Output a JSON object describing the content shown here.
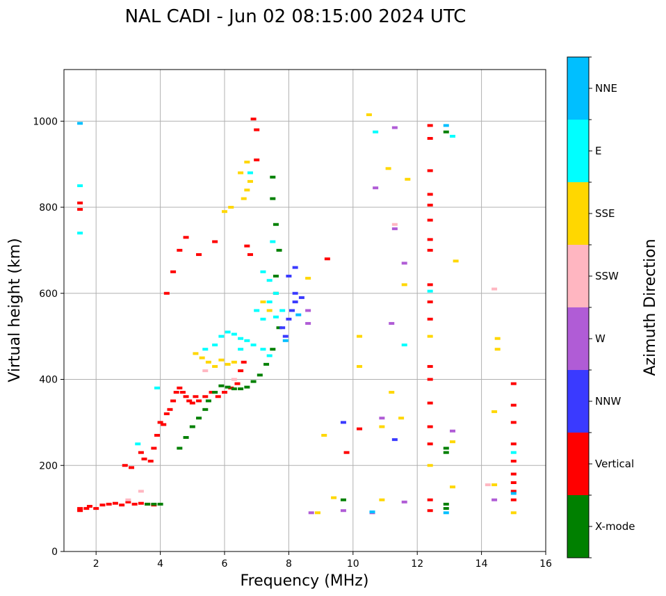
{
  "chart_data": {
    "type": "scatter",
    "title": "NAL CADI - Jun 02 08:15:00 2024 UTC",
    "xlabel": "Frequency (MHz)",
    "ylabel": "Virtual height (km)",
    "xlim": [
      1,
      16
    ],
    "ylim": [
      0,
      1120
    ],
    "xticks": [
      2,
      4,
      6,
      8,
      10,
      12,
      14,
      16
    ],
    "yticks": [
      0,
      200,
      400,
      600,
      800,
      1000
    ],
    "grid": true,
    "colorbar": {
      "label": "Azimuth Direction",
      "categories": [
        {
          "name": "X-mode",
          "color": "#008000"
        },
        {
          "name": "Vertical",
          "color": "#ff0000"
        },
        {
          "name": "NNW",
          "color": "#3a3aff"
        },
        {
          "name": "W",
          "color": "#b05cd6"
        },
        {
          "name": "SSW",
          "color": "#ffb6c1"
        },
        {
          "name": "SSE",
          "color": "#ffd700"
        },
        {
          "name": "E",
          "color": "#00ffff"
        },
        {
          "name": "NNE",
          "color": "#00bfff"
        }
      ]
    },
    "series": [
      {
        "name": "Vertical",
        "points": [
          [
            1.5,
            95
          ],
          [
            1.5,
            100
          ],
          [
            1.5,
            810
          ],
          [
            1.5,
            795
          ],
          [
            1.7,
            100
          ],
          [
            1.8,
            105
          ],
          [
            2.0,
            100
          ],
          [
            2.2,
            108
          ],
          [
            2.4,
            110
          ],
          [
            2.6,
            112
          ],
          [
            2.8,
            108
          ],
          [
            3.0,
            115
          ],
          [
            3.2,
            110
          ],
          [
            3.4,
            112
          ],
          [
            3.6,
            110
          ],
          [
            3.8,
            108
          ],
          [
            2.9,
            200
          ],
          [
            3.1,
            195
          ],
          [
            3.4,
            230
          ],
          [
            3.5,
            215
          ],
          [
            3.7,
            210
          ],
          [
            3.8,
            240
          ],
          [
            3.9,
            270
          ],
          [
            4.0,
            300
          ],
          [
            4.1,
            295
          ],
          [
            4.2,
            320
          ],
          [
            4.3,
            330
          ],
          [
            4.4,
            350
          ],
          [
            4.5,
            370
          ],
          [
            4.6,
            380
          ],
          [
            4.7,
            370
          ],
          [
            4.8,
            360
          ],
          [
            4.9,
            350
          ],
          [
            5.0,
            345
          ],
          [
            5.1,
            360
          ],
          [
            5.2,
            350
          ],
          [
            5.4,
            360
          ],
          [
            5.6,
            370
          ],
          [
            5.8,
            360
          ],
          [
            6.0,
            370
          ],
          [
            6.2,
            380
          ],
          [
            6.4,
            390
          ],
          [
            6.5,
            420
          ],
          [
            6.6,
            440
          ],
          [
            4.2,
            600
          ],
          [
            4.4,
            650
          ],
          [
            4.6,
            700
          ],
          [
            4.8,
            730
          ],
          [
            5.2,
            690
          ],
          [
            5.7,
            720
          ],
          [
            6.7,
            710
          ],
          [
            6.8,
            690
          ],
          [
            6.9,
            1005
          ],
          [
            7.0,
            980
          ],
          [
            7.0,
            910
          ],
          [
            12.4,
            990
          ],
          [
            12.4,
            960
          ],
          [
            12.4,
            885
          ],
          [
            12.4,
            830
          ],
          [
            12.4,
            805
          ],
          [
            12.4,
            770
          ],
          [
            12.4,
            725
          ],
          [
            12.4,
            700
          ],
          [
            12.4,
            620
          ],
          [
            12.4,
            580
          ],
          [
            12.4,
            540
          ],
          [
            12.4,
            430
          ],
          [
            12.4,
            400
          ],
          [
            12.4,
            345
          ],
          [
            12.4,
            290
          ],
          [
            12.4,
            250
          ],
          [
            12.4,
            120
          ],
          [
            12.4,
            95
          ],
          [
            15.0,
            390
          ],
          [
            15.0,
            340
          ],
          [
            15.0,
            300
          ],
          [
            15.0,
            250
          ],
          [
            15.0,
            210
          ],
          [
            15.0,
            180
          ],
          [
            15.0,
            160
          ],
          [
            15.0,
            140
          ],
          [
            15.0,
            120
          ],
          [
            10.2,
            285
          ],
          [
            9.8,
            230
          ],
          [
            9.2,
            680
          ]
        ]
      },
      {
        "name": "X-mode",
        "points": [
          [
            4.6,
            240
          ],
          [
            4.8,
            265
          ],
          [
            5.0,
            290
          ],
          [
            5.2,
            310
          ],
          [
            5.4,
            330
          ],
          [
            5.5,
            350
          ],
          [
            5.7,
            370
          ],
          [
            5.9,
            385
          ],
          [
            6.1,
            382
          ],
          [
            6.3,
            378
          ],
          [
            6.5,
            378
          ],
          [
            6.7,
            382
          ],
          [
            6.9,
            395
          ],
          [
            7.1,
            410
          ],
          [
            7.3,
            435
          ],
          [
            7.5,
            470
          ],
          [
            7.7,
            520
          ],
          [
            7.6,
            600
          ],
          [
            7.6,
            640
          ],
          [
            7.7,
            700
          ],
          [
            7.6,
            760
          ],
          [
            7.5,
            820
          ],
          [
            3.6,
            110
          ],
          [
            3.8,
            110
          ],
          [
            4.0,
            110
          ],
          [
            12.9,
            100
          ],
          [
            12.9,
            110
          ],
          [
            12.9,
            240
          ],
          [
            12.9,
            230
          ],
          [
            12.9,
            975
          ],
          [
            9.7,
            120
          ],
          [
            7.5,
            870
          ]
        ]
      },
      {
        "name": "NNW",
        "points": [
          [
            7.8,
            520
          ],
          [
            8.0,
            540
          ],
          [
            8.1,
            560
          ],
          [
            8.2,
            580
          ],
          [
            8.2,
            600
          ],
          [
            8.4,
            590
          ],
          [
            8.0,
            640
          ],
          [
            8.2,
            660
          ],
          [
            7.9,
            500
          ],
          [
            11.3,
            260
          ],
          [
            9.7,
            300
          ]
        ]
      },
      {
        "name": "W",
        "points": [
          [
            8.6,
            530
          ],
          [
            8.6,
            560
          ],
          [
            11.2,
            530
          ],
          [
            11.3,
            750
          ],
          [
            10.7,
            845
          ],
          [
            11.6,
            670
          ],
          [
            11.3,
            985
          ],
          [
            13.1,
            280
          ],
          [
            8.7,
            90
          ],
          [
            10.6,
            90
          ],
          [
            11.6,
            115
          ],
          [
            14.4,
            120
          ],
          [
            10.9,
            310
          ],
          [
            9.7,
            95
          ]
        ]
      },
      {
        "name": "SSW",
        "points": [
          [
            3.4,
            140
          ],
          [
            3.0,
            120
          ],
          [
            11.3,
            760
          ],
          [
            14.4,
            610
          ],
          [
            14.2,
            155
          ],
          [
            5.4,
            420
          ],
          [
            6.3,
            400
          ]
        ]
      },
      {
        "name": "SSE",
        "points": [
          [
            5.1,
            460
          ],
          [
            5.3,
            450
          ],
          [
            5.5,
            440
          ],
          [
            5.7,
            430
          ],
          [
            5.9,
            445
          ],
          [
            6.1,
            435
          ],
          [
            6.3,
            440
          ],
          [
            6.6,
            820
          ],
          [
            6.7,
            840
          ],
          [
            6.8,
            860
          ],
          [
            6.5,
            880
          ],
          [
            6.7,
            905
          ],
          [
            6.2,
            800
          ],
          [
            6.0,
            790
          ],
          [
            7.2,
            580
          ],
          [
            7.4,
            560
          ],
          [
            8.6,
            635
          ],
          [
            10.2,
            500
          ],
          [
            10.2,
            430
          ],
          [
            10.9,
            290
          ],
          [
            11.2,
            370
          ],
          [
            11.5,
            310
          ],
          [
            11.7,
            865
          ],
          [
            11.6,
            620
          ],
          [
            12.4,
            500
          ],
          [
            12.4,
            200
          ],
          [
            13.1,
            255
          ],
          [
            13.1,
            150
          ],
          [
            13.2,
            675
          ],
          [
            14.5,
            495
          ],
          [
            14.5,
            470
          ],
          [
            14.4,
            325
          ],
          [
            14.4,
            155
          ],
          [
            15.0,
            90
          ],
          [
            9.1,
            270
          ],
          [
            10.5,
            1015
          ],
          [
            11.1,
            890
          ],
          [
            10.9,
            120
          ],
          [
            9.4,
            125
          ],
          [
            8.9,
            90
          ]
        ]
      },
      {
        "name": "E",
        "points": [
          [
            5.7,
            480
          ],
          [
            5.9,
            500
          ],
          [
            6.1,
            510
          ],
          [
            6.3,
            505
          ],
          [
            6.5,
            495
          ],
          [
            6.7,
            490
          ],
          [
            6.9,
            480
          ],
          [
            7.2,
            470
          ],
          [
            7.4,
            455
          ],
          [
            7.6,
            600
          ],
          [
            7.4,
            630
          ],
          [
            7.2,
            650
          ],
          [
            7.2,
            540
          ],
          [
            7.4,
            580
          ],
          [
            7.6,
            545
          ],
          [
            7.8,
            560
          ],
          [
            7.0,
            560
          ],
          [
            6.5,
            470
          ],
          [
            3.9,
            380
          ],
          [
            3.3,
            250
          ],
          [
            1.5,
            850
          ],
          [
            1.5,
            740
          ],
          [
            6.8,
            880
          ],
          [
            7.5,
            720
          ],
          [
            10.7,
            975
          ],
          [
            12.4,
            605
          ],
          [
            13.1,
            965
          ],
          [
            11.6,
            480
          ],
          [
            15.0,
            230
          ],
          [
            5.4,
            470
          ]
        ]
      },
      {
        "name": "NNE",
        "points": [
          [
            1.5,
            995
          ],
          [
            12.9,
            990
          ],
          [
            12.9,
            90
          ],
          [
            10.6,
            92
          ],
          [
            15.0,
            135
          ],
          [
            8.3,
            550
          ],
          [
            7.9,
            490
          ]
        ]
      }
    ]
  }
}
